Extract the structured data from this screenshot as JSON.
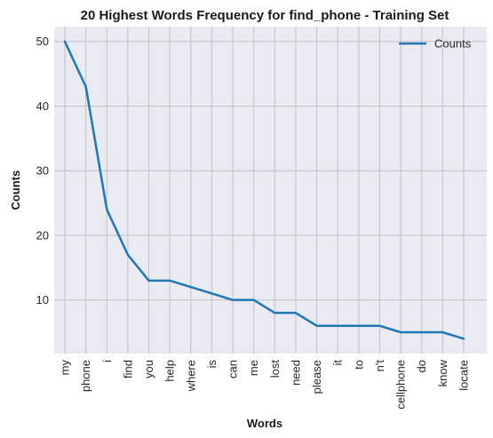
{
  "chart_data": {
    "type": "line",
    "title": "20 Highest Words Frequency for find_phone - Training Set",
    "xlabel": "Words",
    "ylabel": "Counts",
    "categories": [
      "my",
      "phone",
      "i",
      "find",
      "you",
      "help",
      "where",
      "is",
      "can",
      "me",
      "lost",
      "need",
      "please",
      "it",
      "to",
      "n't",
      "cellphone",
      "do",
      "know",
      "locate"
    ],
    "series": [
      {
        "name": "Counts",
        "values": [
          50,
          43,
          24,
          17,
          13,
          13,
          12,
          11,
          10,
          10,
          8,
          8,
          6,
          6,
          6,
          6,
          5,
          5,
          5,
          4
        ],
        "color": "#1f77b4"
      }
    ],
    "ylim": [
      1.7,
      52.3
    ],
    "yticks": [
      10,
      20,
      30,
      40,
      50
    ],
    "grid": true,
    "legend": "top-right",
    "background": "#eaeaf2",
    "grid_color": "#c0c0c0"
  }
}
